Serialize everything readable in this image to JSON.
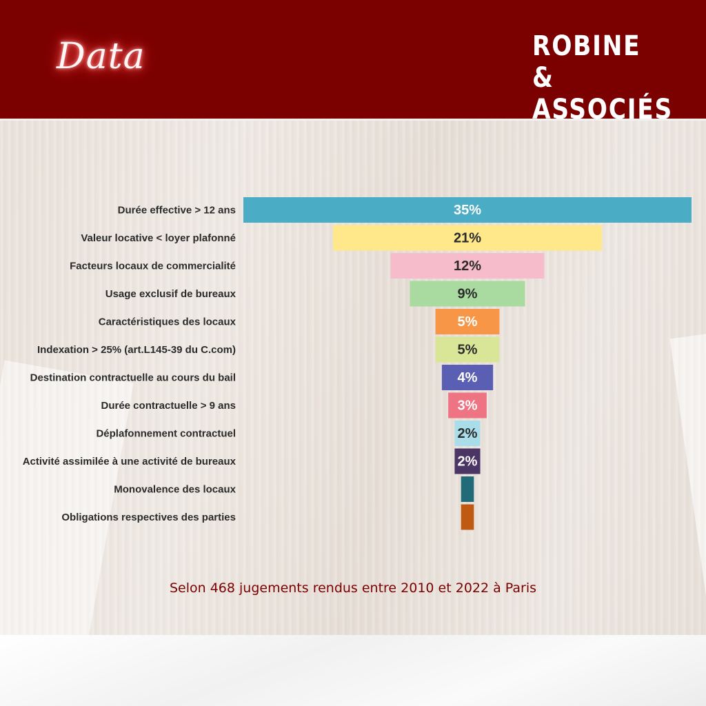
{
  "header": {
    "title": "Data",
    "brand_line1": "ROBINE",
    "brand_line2": "& ASSOCIÉS",
    "background_color": "#7b0000"
  },
  "caption": "Selon 468 jugements rendus entre 2010 et 2022 à Paris",
  "chart_data": {
    "type": "bar",
    "orientation": "horizontal-centered-funnel",
    "categories": [
      "Durée effective > 12 ans",
      "Valeur locative < loyer plafonné",
      "Facteurs locaux de commercialité",
      "Usage exclusif de bureaux",
      "Caractéristiques des locaux",
      "Indexation > 25% (art.L145-39 du C.com)",
      "Destination contractuelle au cours du bail",
      "Durée contractuelle > 9 ans",
      "Déplafonnement contractuel",
      "Activité assimilée à une activité de bureaux",
      "Monovalence des locaux",
      "Obligations respectives des parties"
    ],
    "values": [
      35,
      21,
      12,
      9,
      5,
      5,
      4,
      3,
      2,
      2,
      1,
      1
    ],
    "value_labels": [
      "35%",
      "21%",
      "12%",
      "9%",
      "5%",
      "5%",
      "4%",
      "3%",
      "2%",
      "2%",
      "",
      ""
    ],
    "colors": [
      "#4bacc6",
      "#ffe88a",
      "#f7bccc",
      "#a9dba0",
      "#f79646",
      "#d9e597",
      "#5a5fb3",
      "#ee7483",
      "#a9ddea",
      "#4a3565",
      "#216a78",
      "#c05a10"
    ],
    "label_colors": [
      "#ffffff",
      "#2a2a2a",
      "#2a2a2a",
      "#2a2a2a",
      "#ffffff",
      "#2a2a2a",
      "#ffffff",
      "#ffffff",
      "#2a2a2a",
      "#ffffff",
      "#ffffff",
      "#ffffff"
    ],
    "xlim": [
      0,
      35
    ],
    "grid": false,
    "legend": "none"
  }
}
